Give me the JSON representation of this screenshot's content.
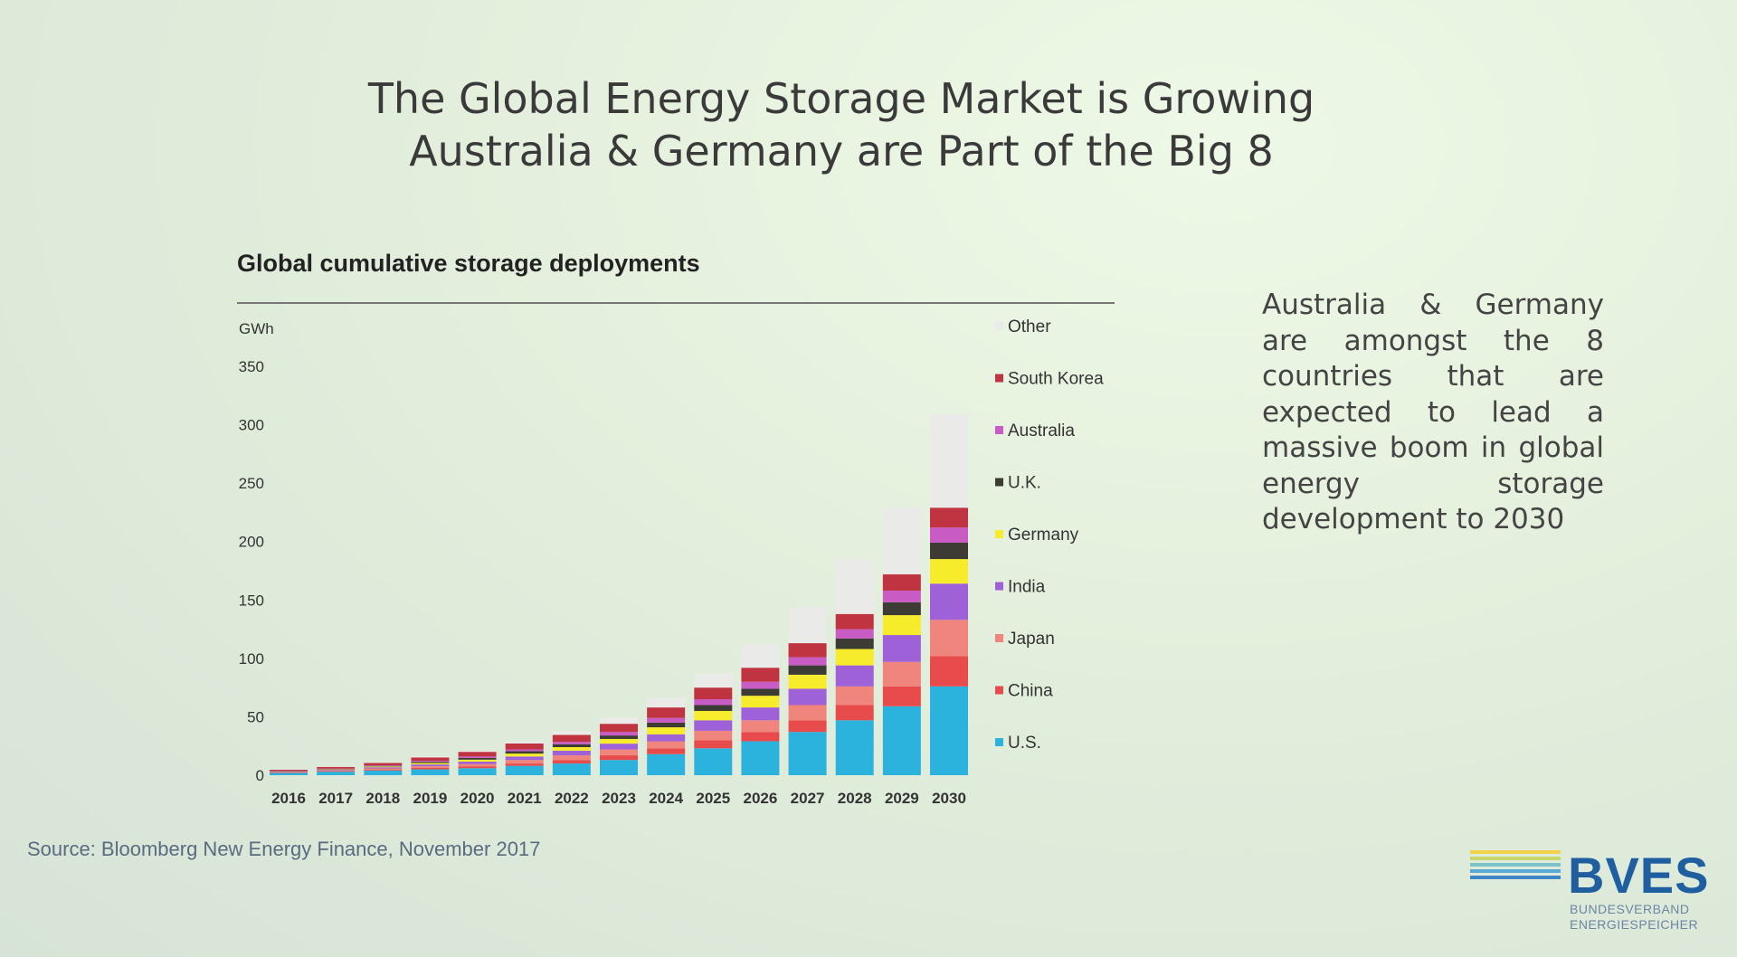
{
  "slide": {
    "title_line1": "The Global Energy Storage Market is Growing",
    "title_line2": "Australia & Germany are Part of the Big 8",
    "side_text": "Australia & Germany are amongst the 8 countries that are expected to lead a massive boom in global energy storage development to 2030",
    "source": "Source: Bloomberg New Energy Finance, November 2017"
  },
  "logo": {
    "name": "BVES",
    "sub_line1": "BUNDESVERBAND",
    "sub_line2": "ENERGIESPEICHER",
    "stripe_colors": [
      "#f3d24a",
      "#c9d66a",
      "#7cc2c9",
      "#58a9d6",
      "#3d85c6"
    ]
  },
  "chart_data": {
    "type": "bar",
    "stacked": true,
    "title": "Global cumulative storage deployments",
    "ylabel": "GWh",
    "ylim": [
      0,
      350
    ],
    "yticks": [
      0,
      50,
      100,
      150,
      200,
      250,
      300,
      350
    ],
    "categories": [
      "2016",
      "2017",
      "2018",
      "2019",
      "2020",
      "2021",
      "2022",
      "2023",
      "2024",
      "2025",
      "2026",
      "2027",
      "2028",
      "2029",
      "2030"
    ],
    "legend_position": "right",
    "series": [
      {
        "name": "U.S.",
        "color": "#2bb3de",
        "values": [
          2,
          3,
          4,
          5,
          6,
          8,
          10,
          13,
          18,
          23,
          29,
          37,
          47,
          59,
          76
        ]
      },
      {
        "name": "China",
        "color": "#e84b4b",
        "values": [
          0.3,
          0.5,
          0.8,
          1.2,
          1.6,
          2,
          3,
          4,
          5,
          7,
          8,
          10,
          13,
          17,
          26
        ]
      },
      {
        "name": "Japan",
        "color": "#f0857e",
        "values": [
          0.4,
          0.6,
          1,
          1.5,
          2,
          3,
          4,
          5,
          6,
          8,
          10,
          13,
          16,
          21,
          31
        ]
      },
      {
        "name": "India",
        "color": "#9f61d8",
        "values": [
          0.3,
          0.5,
          1,
          1.5,
          2,
          3,
          4,
          5,
          6,
          9,
          11,
          14,
          18,
          23,
          31
        ]
      },
      {
        "name": "Germany",
        "color": "#f7ec2b",
        "values": [
          0.3,
          0.4,
          0.7,
          1.2,
          1.7,
          2.5,
          3,
          4,
          6,
          8,
          10,
          12,
          14,
          17,
          21
        ]
      },
      {
        "name": "U.K.",
        "color": "#3c3c35",
        "values": [
          0.2,
          0.3,
          0.5,
          1,
          1.5,
          2,
          2.5,
          3,
          4,
          5,
          6,
          8,
          9,
          11,
          14
        ]
      },
      {
        "name": "Australia",
        "color": "#c95bc4",
        "values": [
          0.2,
          0.3,
          0.5,
          0.8,
          1.2,
          1.6,
          2,
          3,
          4,
          5,
          6,
          7,
          8,
          10,
          13
        ]
      },
      {
        "name": "South Korea",
        "color": "#bf3440",
        "values": [
          1,
          1.5,
          2,
          3,
          4,
          5,
          6,
          7,
          9,
          10,
          12,
          12,
          13,
          14,
          17
        ]
      },
      {
        "name": "Other",
        "color": "#eaeae8",
        "values": [
          0.3,
          0.4,
          0.5,
          0.8,
          1,
          2,
          3,
          5,
          8,
          12,
          20,
          31,
          47,
          57,
          80
        ]
      }
    ]
  }
}
